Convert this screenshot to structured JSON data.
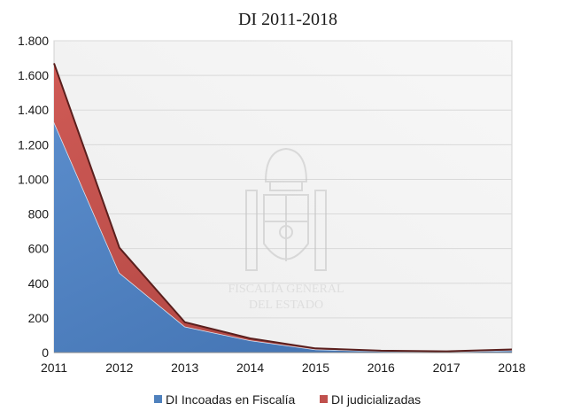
{
  "chart_data": {
    "type": "area",
    "stacked": true,
    "title": "DI 2011-2018",
    "xlabel": "",
    "ylabel": "",
    "x": [
      2011,
      2012,
      2013,
      2014,
      2015,
      2016,
      2017,
      2018
    ],
    "x_tick_labels": [
      "2011",
      "2012",
      "2013",
      "2014",
      "2015",
      "2016",
      "2017",
      "2018"
    ],
    "ylim": [
      0,
      1800
    ],
    "y_ticks": [
      0,
      200,
      400,
      600,
      800,
      1000,
      1200,
      1400,
      1600,
      1800
    ],
    "y_tick_labels": [
      "0",
      "200",
      "400",
      "600",
      "800",
      "1.000",
      "1.200",
      "1.400",
      "1.600",
      "1.800"
    ],
    "grid": true,
    "legend": "bottom",
    "series": [
      {
        "name": "DI Incoadas en Fiscalía",
        "color": "#4f81bd",
        "values": [
          1330,
          460,
          150,
          70,
          18,
          8,
          5,
          12
        ]
      },
      {
        "name": "DI judicializadas",
        "color": "#c0504d",
        "values": [
          340,
          145,
          25,
          12,
          6,
          3,
          2,
          6
        ]
      }
    ]
  },
  "watermark": {
    "icon": "coat-of-arms-icon",
    "lines": [
      "FISCALÍA GENERAL",
      "DEL ESTADO"
    ]
  }
}
